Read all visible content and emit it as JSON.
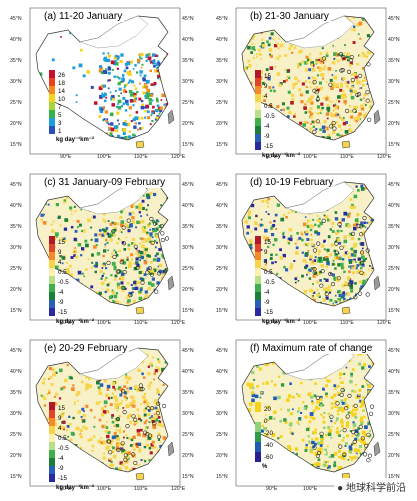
{
  "panels": [
    {
      "title": "(a) 11-20 January",
      "ticks": [
        "26",
        "18",
        "14",
        "10",
        "7",
        "5",
        "3",
        "1"
      ],
      "unit": "kg day⁻¹km⁻²",
      "palette": "warm"
    },
    {
      "title": "(b) 21-30 January",
      "ticks": [
        "15",
        "9",
        "4",
        "0.5",
        "-0.5",
        "-4",
        "-9",
        "-15"
      ],
      "unit": "kg day⁻¹km⁻²",
      "palette": "diverge"
    },
    {
      "title": "(c) 31 January-09 February",
      "ticks": [
        "15",
        "9",
        "4",
        "0.5",
        "-0.5",
        "-4",
        "-9",
        "-15"
      ],
      "unit": "kg day⁻¹km⁻²",
      "palette": "diverge"
    },
    {
      "title": "(d) 10-19 February",
      "ticks": [
        "15",
        "9",
        "4",
        "0.5",
        "-0.5",
        "-4",
        "-9",
        "-15"
      ],
      "unit": "kg day⁻¹km⁻²",
      "palette": "diverge"
    },
    {
      "title": "(e) 20-29 February",
      "ticks": [
        "15",
        "9",
        "4",
        "0.5",
        "-0.5",
        "-4",
        "-9",
        "-15"
      ],
      "unit": "kg day⁻¹km⁻²",
      "palette": "diverge"
    },
    {
      "title": "(f) Maximum rate of change",
      "ticks": [
        "20",
        "0",
        "-20",
        "-40",
        "-60"
      ],
      "unit": "%",
      "palette": "rate"
    }
  ],
  "lat_labels": [
    "45°N",
    "40°N",
    "35°N",
    "30°N",
    "25°N",
    "20°N",
    "15°N"
  ],
  "lon_labels": [
    "90°E",
    "100°E",
    "110°E",
    "120°E"
  ],
  "watermark": "地球科学前沿",
  "colors": {
    "warm": [
      "#c8102e",
      "#e8431d",
      "#f28b1e",
      "#f7d21a",
      "#a6d43a",
      "#36b24a",
      "#1f9fd9",
      "#2b4fb7"
    ],
    "diverge": [
      "#b2182b",
      "#e0442a",
      "#f58a2a",
      "#f7d54a",
      "#fbf0b0",
      "#b8e08a",
      "#3fae4c",
      "#1b7f3a",
      "#2a5fb8",
      "#2a2aa0"
    ],
    "rate": [
      "#f7d21a",
      "#fbf3c0",
      "#8fd27a",
      "#2f9a47",
      "#1e5ab6",
      "#2b1f8f"
    ]
  }
}
